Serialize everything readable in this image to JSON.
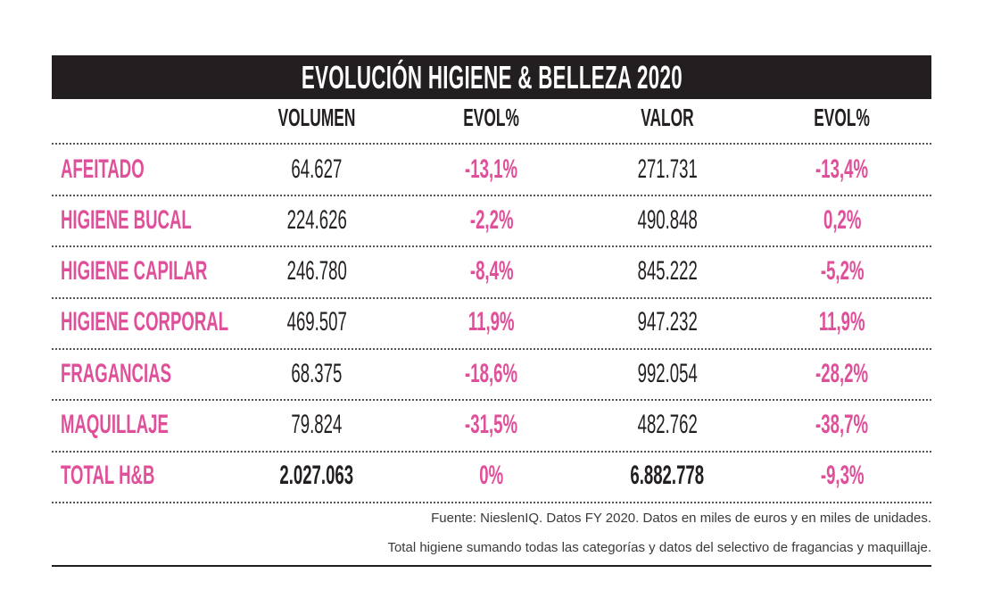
{
  "title": "EVOLUCIÓN HIGIENE & BELLEZA 2020",
  "colors": {
    "accent": "#e0509a",
    "header_bg": "#231f20",
    "text": "#231f20"
  },
  "chart_data": {
    "type": "table",
    "title": "EVOLUCIÓN HIGIENE & BELLEZA 2020",
    "columns": [
      "",
      "VOLUMEN",
      "EVOL%",
      "VALOR",
      "EVOL%"
    ],
    "rows": [
      [
        "AFEITADO",
        "64.627",
        "-13,1%",
        "271.731",
        "-13,4%"
      ],
      [
        "HIGIENE BUCAL",
        "224.626",
        "-2,2%",
        "490.848",
        "0,2%"
      ],
      [
        "HIGIENE CAPILAR",
        "246.780",
        "-8,4%",
        "845.222",
        "-5,2%"
      ],
      [
        "HIGIENE CORPORAL",
        "469.507",
        "11,9%",
        "947.232",
        "11,9%"
      ],
      [
        "FRAGANCIAS",
        "68.375",
        "-18,6%",
        "992.054",
        "-28,2%"
      ],
      [
        "MAQUILLAJE",
        "79.824",
        "-31,5%",
        "482.762",
        "-38,7%"
      ],
      [
        "TOTAL H&B",
        "2.027.063",
        "0%",
        "6.882.778",
        "-9,3%"
      ]
    ]
  },
  "footnotes": [
    "Fuente: NieslenIQ. Datos FY 2020. Datos en miles de euros y en miles de unidades.",
    "Total higiene sumando todas las categorías y datos del selectivo de fragancias y maquillaje."
  ]
}
